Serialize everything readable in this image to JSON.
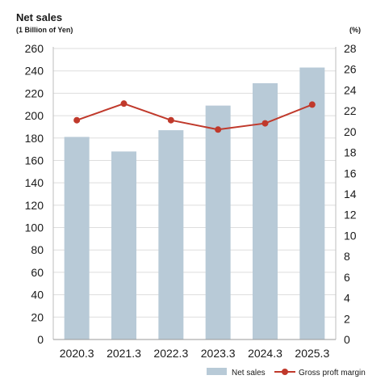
{
  "chart_data": {
    "type": "bar",
    "title": "Net sales",
    "subtitle": "(1 Billion of Yen)",
    "y2_unit": "(%)",
    "categories": [
      "2020.3",
      "2021.3",
      "2022.3",
      "2023.3",
      "2024.3",
      "2025.3"
    ],
    "ylim": [
      0,
      260
    ],
    "yticks": [
      0,
      20,
      40,
      60,
      80,
      100,
      120,
      140,
      160,
      180,
      200,
      220,
      240,
      260
    ],
    "y2lim": [
      0,
      28
    ],
    "y2ticks": [
      0,
      2,
      4,
      6,
      8,
      10,
      12,
      14,
      16,
      18,
      20,
      22,
      24,
      26,
      28
    ],
    "grid": true,
    "legend_position": "bottom-right",
    "series": [
      {
        "name": "Net sales",
        "type": "bar",
        "axis": "left",
        "color": "#b8cad7",
        "values": [
          181,
          168,
          187,
          209,
          229,
          243
        ]
      },
      {
        "name": "Gross proft margin",
        "type": "line",
        "axis": "right",
        "color": "#c0392b",
        "values": [
          21.1,
          22.7,
          21.1,
          20.2,
          20.8,
          22.6
        ]
      }
    ]
  }
}
